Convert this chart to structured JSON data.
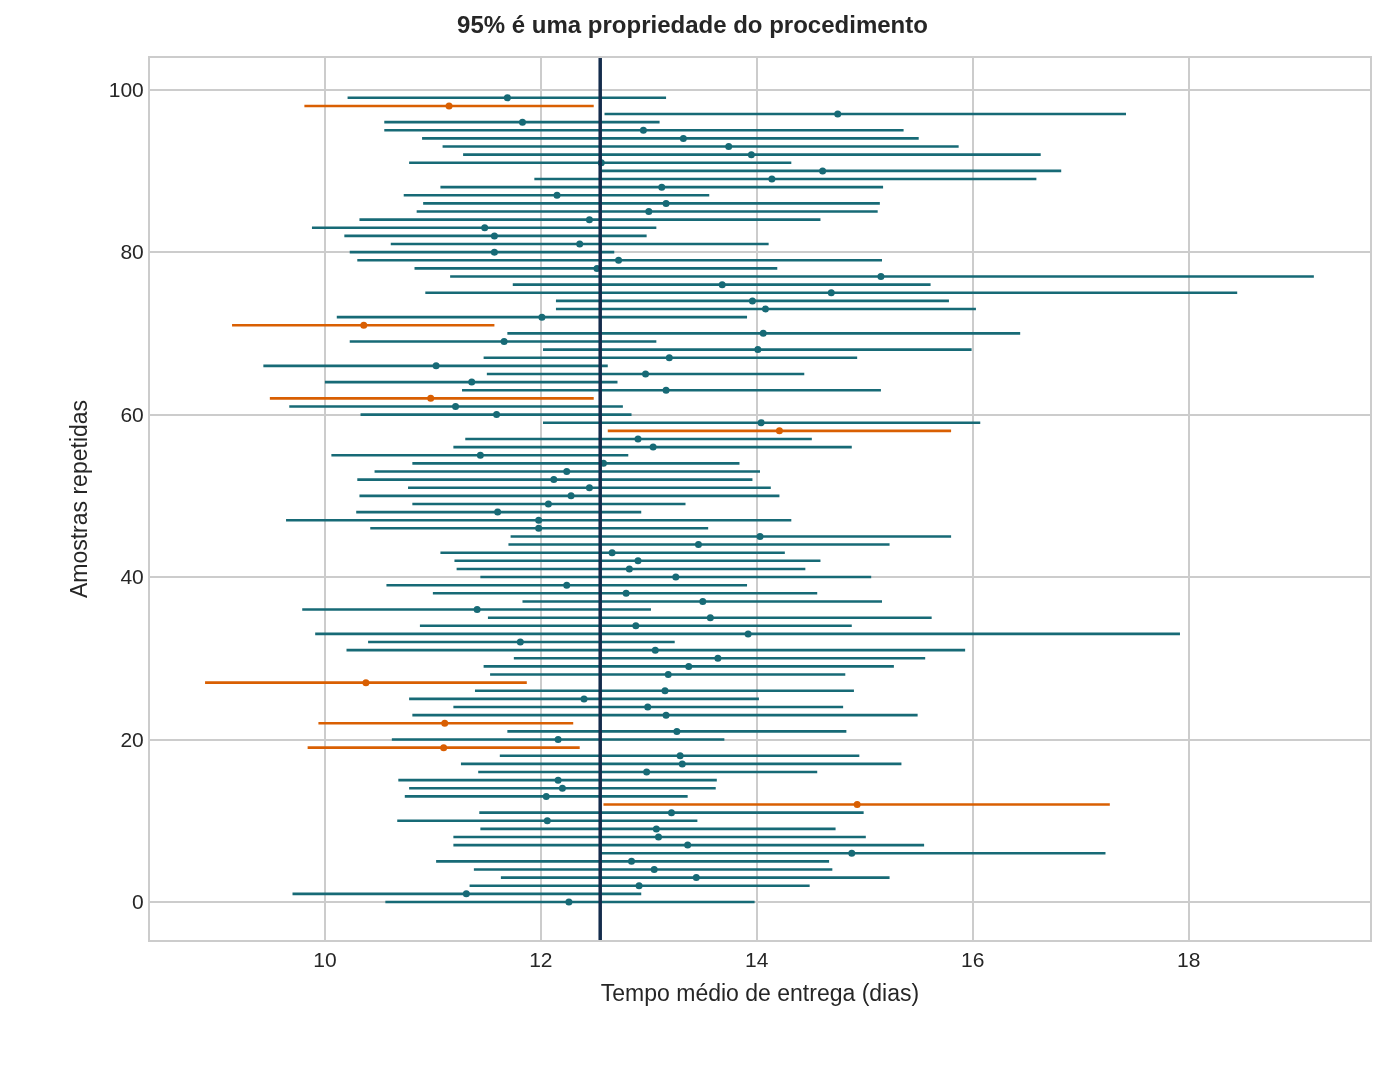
{
  "chart_data": {
    "type": "scatter",
    "title": "95% é uma propriedade do procedimento",
    "xlabel": "Tempo médio de entrega (dias)",
    "ylabel": "Amostras repetidas",
    "xlim": [
      8.38,
      19.68
    ],
    "ylim": [
      -4.68,
      103.9
    ],
    "xticks": [
      10,
      12,
      14,
      16,
      18
    ],
    "yticks": [
      0,
      20,
      40,
      60,
      80,
      100
    ],
    "grid": true,
    "marker": "circle",
    "ref_lines": [
      {
        "axis": "x",
        "value": 12.55,
        "color": "#142c4c"
      }
    ],
    "series": [
      {
        "color": "#176a76",
        "x": [
          12.26,
          11.31,
          12.91,
          13.44,
          13.05,
          12.84,
          14.88,
          13.36,
          13.09,
          13.07,
          12.06,
          13.21,
          12.05,
          12.2,
          12.16,
          12.98,
          13.31,
          13.29,
          12.16,
          13.26,
          13.16,
          12.99,
          12.4,
          13.15,
          13.18,
          13.37,
          13.64,
          13.06,
          11.81,
          13.92,
          12.88,
          13.57,
          11.41,
          13.5,
          12.79,
          12.24,
          13.25,
          12.82,
          12.9,
          12.66,
          13.46,
          14.03,
          11.98,
          11.98,
          11.6,
          12.07,
          12.28,
          12.45,
          12.12,
          12.24,
          12.58,
          11.44,
          13.04,
          12.9,
          14.04,
          11.59,
          11.21,
          13.16,
          11.36,
          12.97,
          11.03,
          13.19,
          14.01,
          11.66,
          14.06,
          12.01,
          14.08,
          13.96,
          14.69,
          13.68,
          15.15,
          12.52,
          12.72,
          11.57,
          12.36,
          11.57,
          11.48,
          12.45,
          13.0,
          13.16,
          12.15,
          13.12,
          14.14,
          14.61,
          12.56,
          13.95,
          13.74,
          13.32,
          12.95,
          11.83,
          14.75,
          11.69
        ],
        "values": [
          0,
          1,
          2,
          3,
          4,
          5,
          6,
          7,
          8,
          9,
          10,
          11,
          13,
          14,
          15,
          16,
          17,
          18,
          20,
          21,
          23,
          24,
          25,
          26,
          28,
          29,
          30,
          31,
          32,
          33,
          34,
          35,
          36,
          37,
          38,
          39,
          40,
          41,
          42,
          43,
          44,
          45,
          46,
          47,
          48,
          49,
          50,
          51,
          52,
          53,
          54,
          55,
          56,
          57,
          59,
          60,
          61,
          63,
          64,
          65,
          66,
          67,
          68,
          69,
          70,
          72,
          73,
          74,
          75,
          76,
          77,
          78,
          79,
          80,
          81,
          82,
          83,
          84,
          85,
          86,
          87,
          88,
          89,
          90,
          91,
          92,
          93,
          94,
          95,
          96,
          97,
          99
        ],
        "xerrors": [
          [
            10.56,
            13.98
          ],
          [
            9.7,
            12.93
          ],
          [
            11.34,
            14.49
          ],
          [
            11.63,
            15.23
          ],
          [
            11.38,
            14.7
          ],
          [
            11.03,
            14.67
          ],
          [
            12.55,
            17.23
          ],
          [
            11.19,
            15.55
          ],
          [
            11.19,
            15.01
          ],
          [
            11.44,
            14.73
          ],
          [
            10.67,
            13.45
          ],
          [
            11.43,
            14.99
          ],
          [
            10.74,
            13.36
          ],
          [
            10.78,
            13.62
          ],
          [
            10.68,
            13.63
          ],
          [
            11.42,
            14.56
          ],
          [
            11.26,
            15.34
          ],
          [
            11.62,
            14.95
          ],
          [
            10.62,
            13.7
          ],
          [
            11.69,
            14.83
          ],
          [
            10.81,
            15.49
          ],
          [
            11.19,
            14.8
          ],
          [
            10.78,
            14.02
          ],
          [
            11.39,
            14.9
          ],
          [
            11.53,
            14.82
          ],
          [
            11.47,
            15.27
          ],
          [
            11.75,
            15.56
          ],
          [
            10.2,
            15.93
          ],
          [
            10.4,
            13.24
          ],
          [
            9.91,
            17.92
          ],
          [
            10.88,
            14.88
          ],
          [
            11.51,
            15.62
          ],
          [
            9.79,
            13.02
          ],
          [
            11.83,
            15.16
          ],
          [
            11.0,
            14.56
          ],
          [
            10.57,
            13.91
          ],
          [
            11.44,
            15.06
          ],
          [
            11.22,
            14.45
          ],
          [
            11.2,
            14.59
          ],
          [
            11.07,
            14.26
          ],
          [
            11.7,
            15.23
          ],
          [
            11.72,
            15.8
          ],
          [
            10.42,
            13.55
          ],
          [
            9.64,
            14.32
          ],
          [
            10.29,
            12.93
          ],
          [
            10.81,
            13.34
          ],
          [
            10.32,
            14.21
          ],
          [
            10.77,
            14.13
          ],
          [
            10.3,
            13.96
          ],
          [
            10.46,
            14.03
          ],
          [
            10.81,
            13.84
          ],
          [
            10.06,
            12.81
          ],
          [
            11.19,
            14.88
          ],
          [
            11.3,
            14.51
          ],
          [
            12.02,
            16.07
          ],
          [
            10.33,
            12.84
          ],
          [
            9.67,
            12.76
          ],
          [
            11.27,
            15.15
          ],
          [
            10.0,
            12.71
          ],
          [
            11.5,
            14.44
          ],
          [
            9.43,
            12.62
          ],
          [
            11.47,
            14.93
          ],
          [
            12.02,
            15.99
          ],
          [
            10.23,
            13.07
          ],
          [
            11.69,
            16.44
          ],
          [
            10.11,
            13.91
          ],
          [
            12.14,
            16.03
          ],
          [
            12.14,
            15.78
          ],
          [
            10.93,
            18.45
          ],
          [
            11.74,
            15.61
          ],
          [
            11.16,
            19.16
          ],
          [
            10.83,
            14.19
          ],
          [
            10.3,
            15.16
          ],
          [
            10.23,
            12.68
          ],
          [
            10.61,
            14.11
          ],
          [
            10.18,
            12.98
          ],
          [
            9.88,
            13.07
          ],
          [
            10.32,
            14.59
          ],
          [
            10.85,
            15.12
          ],
          [
            10.91,
            15.14
          ],
          [
            10.73,
            13.56
          ],
          [
            11.07,
            15.17
          ],
          [
            11.94,
            16.59
          ],
          [
            12.56,
            16.82
          ],
          [
            10.78,
            14.32
          ],
          [
            11.28,
            16.63
          ],
          [
            11.09,
            15.87
          ],
          [
            10.9,
            15.5
          ],
          [
            10.55,
            15.36
          ],
          [
            10.55,
            13.1
          ],
          [
            12.59,
            17.42
          ],
          [
            10.21,
            13.16
          ]
        ]
      },
      {
        "color": "#d95f02",
        "x": [
          14.93,
          11.1,
          11.11,
          10.38,
          14.21,
          10.98,
          10.36,
          11.15
        ],
        "values": [
          12,
          19,
          22,
          27,
          58,
          62,
          71,
          98
        ],
        "xerrors": [
          [
            12.58,
            17.27
          ],
          [
            9.84,
            12.36
          ],
          [
            9.94,
            12.3
          ],
          [
            8.89,
            11.87
          ],
          [
            12.62,
            15.8
          ],
          [
            9.49,
            12.49
          ],
          [
            9.14,
            11.57
          ],
          [
            9.81,
            12.49
          ]
        ]
      }
    ]
  }
}
